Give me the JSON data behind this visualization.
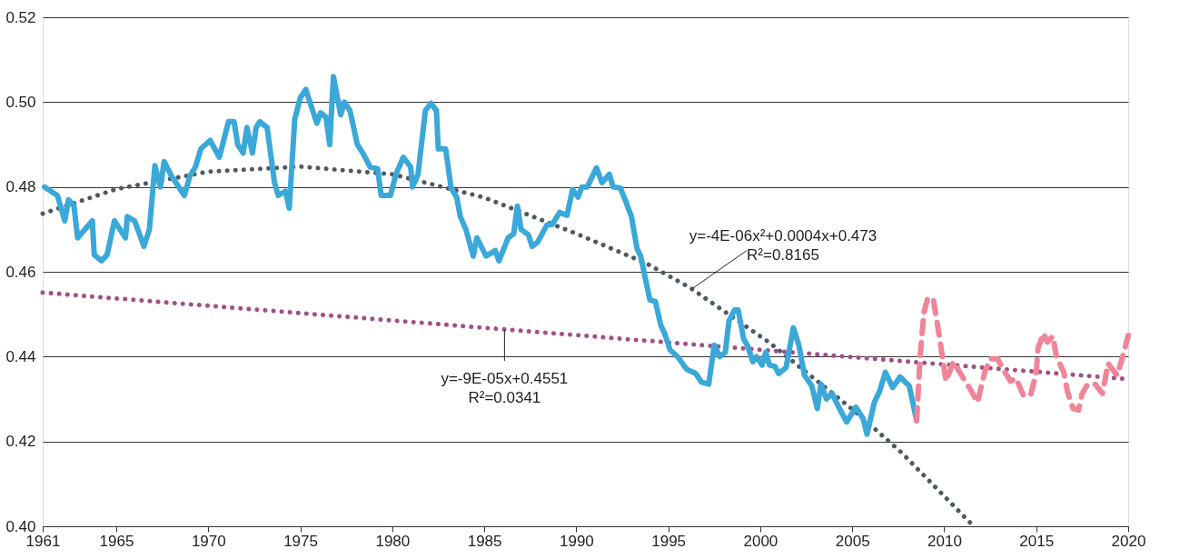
{
  "chart_data": {
    "type": "line",
    "xlim": [
      1961,
      2020
    ],
    "xticks": [
      1961,
      1965,
      1970,
      1975,
      1980,
      1985,
      1990,
      1995,
      2000,
      2005,
      2010,
      2015,
      2020
    ],
    "ylim": [
      0.4,
      0.52
    ],
    "yticks": [
      {
        "value": 0.4,
        "label": "0.40"
      },
      {
        "value": 0.42,
        "label": "0.42"
      },
      {
        "value": 0.44,
        "label": "0.44"
      },
      {
        "value": 0.46,
        "label": "0.46"
      },
      {
        "value": 0.48,
        "label": "0.48"
      },
      {
        "value": 0.5,
        "label": "0.50"
      },
      {
        "value": 0.52,
        "label": "0.52"
      }
    ],
    "grid": "y",
    "series": [
      {
        "color": "#3aa8d8",
        "line_style": "solid",
        "x": [
          1961.1,
          1961.8,
          1962.2,
          1962.4,
          1962.7,
          1962.9,
          1963.3,
          1963.7,
          1963.8,
          1964.2,
          1964.5,
          1964.9,
          1965.5,
          1965.6,
          1966.0,
          1966.5,
          1966.8,
          1967.1,
          1967.4,
          1967.6,
          1968.0,
          1968.7,
          1969.0,
          1969.3,
          1969.6,
          1970.1,
          1970.6,
          1971.1,
          1971.4,
          1971.6,
          1971.9,
          1972.1,
          1972.4,
          1972.6,
          1972.8,
          1973.2,
          1973.6,
          1973.8,
          1974.2,
          1974.4,
          1974.7,
          1975.0,
          1975.3,
          1975.9,
          1976.1,
          1976.4,
          1976.6,
          1976.8,
          1977.2,
          1977.4,
          1977.7,
          1978.1,
          1978.4,
          1978.8,
          1979.2,
          1979.4,
          1979.9,
          1980.2,
          1980.6,
          1981.0,
          1981.1,
          1981.4,
          1981.8,
          1982.1,
          1982.4,
          1982.5,
          1982.9,
          1983.2,
          1983.5,
          1983.7,
          1984.0,
          1984.4,
          1984.6,
          1985.1,
          1985.6,
          1985.8,
          1986.3,
          1986.6,
          1986.8,
          1987.0,
          1987.4,
          1987.6,
          1987.9,
          1988.4,
          1988.7,
          1989.1,
          1989.5,
          1989.8,
          1990.1,
          1990.3,
          1990.6,
          1991.1,
          1991.4,
          1991.8,
          1992.0,
          1992.4,
          1992.7,
          1993.0,
          1993.3,
          1993.5,
          1994.0,
          1994.3,
          1994.6,
          1994.8,
          1995.1,
          1995.5,
          1996.0,
          1996.5,
          1996.8,
          1997.2,
          1997.5,
          1997.8,
          1998.1,
          1998.3,
          1998.6,
          1998.8,
          1999.1,
          1999.3,
          1999.6,
          1999.8,
          2000.1,
          2000.3,
          2000.5,
          2000.8,
          2001.0,
          2001.4,
          2001.8,
          2002.1,
          2002.4,
          2002.8,
          2003.1,
          2003.3,
          2003.6,
          2003.9,
          2004.3,
          2004.7,
          2005.2,
          2005.6,
          2005.8,
          2006.2,
          2006.5,
          2006.8,
          2007.2,
          2007.6,
          2008.1,
          2008.5
        ],
        "values": [
          0.48,
          0.478,
          0.472,
          0.477,
          0.4755,
          0.468,
          0.47,
          0.472,
          0.464,
          0.4626,
          0.464,
          0.472,
          0.468,
          0.473,
          0.472,
          0.466,
          0.47,
          0.485,
          0.48,
          0.486,
          0.4826,
          0.478,
          0.4826,
          0.4847,
          0.489,
          0.491,
          0.487,
          0.4954,
          0.4954,
          0.49,
          0.488,
          0.494,
          0.488,
          0.494,
          0.4954,
          0.494,
          0.481,
          0.478,
          0.479,
          0.475,
          0.496,
          0.501,
          0.503,
          0.495,
          0.4975,
          0.4964,
          0.49,
          0.506,
          0.497,
          0.5,
          0.498,
          0.49,
          0.488,
          0.4847,
          0.4843,
          0.478,
          0.478,
          0.483,
          0.487,
          0.4847,
          0.48,
          0.483,
          0.498,
          0.4997,
          0.498,
          0.489,
          0.489,
          0.4797,
          0.4776,
          0.473,
          0.47,
          0.4637,
          0.468,
          0.4637,
          0.465,
          0.4626,
          0.468,
          0.469,
          0.4755,
          0.47,
          0.4687,
          0.466,
          0.467,
          0.471,
          0.4712,
          0.474,
          0.4733,
          0.4794,
          0.4776,
          0.48,
          0.48,
          0.4845,
          0.481,
          0.483,
          0.48,
          0.4797,
          0.4765,
          0.473,
          0.4655,
          0.4637,
          0.4534,
          0.453,
          0.4473,
          0.4455,
          0.4416,
          0.44,
          0.437,
          0.436,
          0.434,
          0.4335,
          0.4427,
          0.44,
          0.441,
          0.4484,
          0.451,
          0.451,
          0.4441,
          0.4427,
          0.4388,
          0.44,
          0.438,
          0.441,
          0.438,
          0.4377,
          0.436,
          0.4374,
          0.4468,
          0.4427,
          0.4356,
          0.4331,
          0.4278,
          0.4335,
          0.43,
          0.4313,
          0.4278,
          0.4246,
          0.4281,
          0.4253,
          0.4217,
          0.4292,
          0.432,
          0.4363,
          0.4327,
          0.4352,
          0.4331,
          0.4249
        ]
      },
      {
        "color": "#f08498",
        "line_style": "dashed",
        "x": [
          2008.5,
          2008.7,
          2008.9,
          2009.1,
          2009.4,
          2009.6,
          2009.9,
          2010.1,
          2010.5,
          2011.0,
          2011.5,
          2011.8,
          2012.2,
          2012.5,
          2012.9,
          2013.2,
          2013.6,
          2013.9,
          2014.3,
          2014.7,
          2015.0,
          2015.1,
          2015.4,
          2015.6,
          2015.9,
          2016.1,
          2016.5,
          2016.7,
          2017.0,
          2017.3,
          2017.5,
          2017.8,
          2018.2,
          2018.6,
          2018.9,
          2019.4,
          2019.7,
          2020.0
        ],
        "values": [
          0.4249,
          0.4406,
          0.4505,
          0.4537,
          0.4537,
          0.4484,
          0.44,
          0.4342,
          0.4388,
          0.4352,
          0.4317,
          0.4292,
          0.4363,
          0.4395,
          0.4395,
          0.437,
          0.4342,
          0.4349,
          0.4309,
          0.4309,
          0.4363,
          0.442,
          0.4455,
          0.4434,
          0.4448,
          0.44,
          0.4363,
          0.4317,
          0.4278,
          0.4274,
          0.4313,
          0.4335,
          0.4335,
          0.4313,
          0.4384,
          0.4356,
          0.44,
          0.445
        ]
      },
      {
        "color": "#4d5a63",
        "line_style": "dotted",
        "x": [
          1961,
          1965,
          1970,
          1975,
          1980,
          1985,
          1990,
          1993.8,
          1996.2,
          2000.5,
          2005.2,
          2007.7,
          2011.6
        ],
        "values": [
          0.4737,
          0.4795,
          0.4836,
          0.4848,
          0.483,
          0.4775,
          0.469,
          0.462,
          0.4562,
          0.4433,
          0.4269,
          0.4173,
          0.4
        ]
      },
      {
        "color": "#a05088",
        "line_style": "dotted",
        "x": [
          1961,
          2020
        ],
        "values": [
          0.4551,
          0.4347
        ]
      }
    ],
    "annotations": [
      {
        "text": "y=-4E-06x²+0.0004x+0.473\nR²=0.8165",
        "x": 1996.3,
        "y": 0.456
      },
      {
        "text": "y=-9E-05x+0.4551\nR²=0.0341",
        "x": 1986.1,
        "y": 0.4463
      }
    ]
  }
}
